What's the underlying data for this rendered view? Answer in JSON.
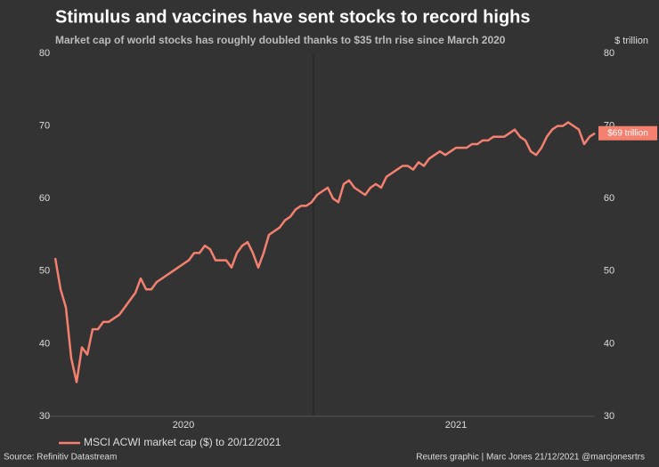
{
  "chart_data": {
    "type": "line",
    "title": "Stimulus and vaccines have sent stocks to record highs",
    "subtitle": "Market cap of world stocks has roughly doubled thanks to $35 trln rise since March 2020",
    "y2_label": "$ trillion",
    "end_label": "$69 trillion",
    "source": "Source: Refinitiv Datastream",
    "credit": "Reuters graphic | Marc Jones 21/12/2021 @marcjonesrtrs",
    "categories": [
      null,
      null,
      null,
      null,
      null,
      null,
      null,
      null,
      null,
      null,
      null,
      null,
      null,
      null,
      null,
      null,
      null,
      null,
      null,
      null,
      null,
      null,
      null,
      null,
      "2020",
      null,
      null,
      null,
      null,
      null,
      null,
      null,
      null,
      null,
      null,
      null,
      null,
      null,
      null,
      null,
      null,
      null,
      null,
      null,
      null,
      null,
      null,
      null,
      null,
      null,
      null,
      null,
      null,
      null,
      null,
      null,
      null,
      null,
      null,
      null,
      null,
      null,
      null,
      null,
      null,
      null,
      null,
      null,
      null,
      null,
      null,
      null,
      null,
      null,
      null,
      "2021",
      null,
      null,
      null,
      null,
      null,
      null,
      null,
      null,
      null,
      null,
      null,
      null,
      null,
      null,
      null,
      null,
      null,
      null,
      null,
      null,
      null,
      null,
      null,
      null,
      null,
      null
    ],
    "series": [
      {
        "name": "MSCI ACWI market cap ($) to 20/12/2021",
        "color": "#f4806f",
        "values": [
          51.8,
          47.5,
          45,
          38,
          34.7,
          39.5,
          38.5,
          42,
          42,
          43,
          43,
          43.5,
          44,
          45,
          46,
          47,
          49,
          47.5,
          47.5,
          48.5,
          49,
          49.5,
          50,
          50.5,
          51,
          51.5,
          52.5,
          52.5,
          53.5,
          53,
          51.5,
          51.5,
          51.5,
          50.5,
          52.5,
          53.5,
          54,
          52.5,
          50.5,
          52.5,
          55,
          55.5,
          56,
          57,
          57.5,
          58.5,
          59,
          59,
          59.5,
          60.5,
          61,
          61.5,
          60,
          59.5,
          62,
          62.5,
          61.5,
          61,
          60.5,
          61.5,
          62,
          61.5,
          63,
          63.5,
          64,
          64.5,
          64.5,
          64,
          65,
          64.5,
          65.5,
          66,
          66.5,
          66,
          66.5,
          67,
          67,
          67,
          67.5,
          67.5,
          68,
          68,
          68.5,
          68.5,
          68.5,
          69,
          69.5,
          68.5,
          68,
          66.5,
          66,
          67,
          68.5,
          69.5,
          70,
          70,
          70.5,
          70,
          69.5,
          67.5,
          68.5,
          69
        ]
      }
    ],
    "ylim": [
      30,
      80
    ],
    "yticks": [
      30,
      40,
      50,
      60,
      70,
      80
    ],
    "y2lim": [
      30,
      80
    ],
    "y2ticks": [
      30,
      40,
      50,
      60,
      70,
      80
    ],
    "grid": false
  }
}
